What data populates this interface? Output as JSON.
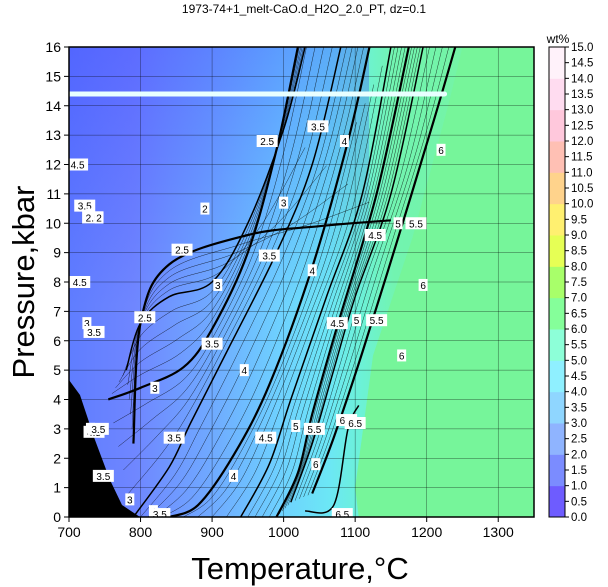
{
  "title": "1973-74+1_melt-CaO.d_H2O_2.0_PT, dz=0.1",
  "colorbar_title": "wt%",
  "chart_data": {
    "type": "heatmap",
    "title": "1973-74+1_melt-CaO.d_H2O_2.0_PT, dz=0.1",
    "xlabel": "Temperature,°C",
    "ylabel": "Pressure,kbar",
    "xlim": [
      700,
      1350
    ],
    "ylim": [
      0,
      16
    ],
    "x_ticks": [
      700,
      800,
      900,
      1000,
      1100,
      1200,
      1300
    ],
    "y_ticks": [
      0,
      1,
      2,
      3,
      4,
      5,
      6,
      7,
      8,
      9,
      10,
      11,
      12,
      13,
      14,
      15,
      16
    ],
    "grid": true,
    "colorbar": {
      "label": "wt%",
      "range": [
        0.0,
        15.0
      ],
      "ticks": [
        "0.0",
        "0.5",
        "1.0",
        "1.5",
        "2.0",
        "2.5",
        "3.0",
        "3.5",
        "4.0",
        "4.5",
        "5.0",
        "5.5",
        "6.0",
        "6.5",
        "7.0",
        "7.5",
        "8.0",
        "8.5",
        "9.0",
        "9.5",
        "10.0",
        "10.5",
        "11.0",
        "11.5",
        "12.0",
        "12.5",
        "13.0",
        "13.5",
        "14.0",
        "14.5",
        "15.0"
      ],
      "colors": [
        "#6e5cff",
        "#7b8cff",
        "#8fb4ff",
        "#8fd6ff",
        "#8ff0ff",
        "#8dffd8",
        "#85ff9a",
        "#a8ff6a",
        "#e6ff55",
        "#fff070",
        "#ffd38c",
        "#ffc0b4",
        "#ffc8dc",
        "#ffdcf0",
        "#fff2fa"
      ]
    },
    "subsolidus_region": {
      "t_min": 1105,
      "value": 7.8,
      "color": "#76f59a"
    },
    "highlight_line": {
      "p": 14.4,
      "t_range": [
        700,
        1225
      ],
      "color": "#e8ffff"
    },
    "contours": [
      {
        "level": 2.0,
        "points": [
          [
            790,
            2.5
          ],
          [
            800,
            6.6
          ],
          [
            840,
            8.6
          ],
          [
            950,
            9.6
          ],
          [
            1050,
            9.9
          ],
          [
            1150,
            10.1
          ]
        ]
      },
      {
        "level": 2.5,
        "points": [
          [
            780,
            5.0
          ],
          [
            800,
            6.6
          ],
          [
            840,
            7.5
          ],
          [
            900,
            8.0
          ],
          [
            950,
            10.0
          ],
          [
            1000,
            13.2
          ],
          [
            1030,
            16.0
          ]
        ]
      },
      {
        "level": 3.0,
        "points": [
          [
            755,
            4.0
          ],
          [
            800,
            4.4
          ],
          [
            860,
            5.1
          ],
          [
            900,
            6.4
          ],
          [
            950,
            9.0
          ],
          [
            990,
            12.5
          ],
          [
            1020,
            16.0
          ]
        ]
      },
      {
        "level": 3.5,
        "points": [
          [
            790,
            0.0
          ],
          [
            840,
            1.7
          ],
          [
            870,
            3.2
          ],
          [
            920,
            5.6
          ],
          [
            990,
            9.0
          ],
          [
            1040,
            12.0
          ],
          [
            1080,
            16.0
          ]
        ]
      },
      {
        "level": 4.0,
        "points": [
          [
            840,
            0.0
          ],
          [
            880,
            0.4
          ],
          [
            930,
            2.1
          ],
          [
            980,
            4.5
          ],
          [
            1040,
            8.5
          ],
          [
            1090,
            12.8
          ],
          [
            1120,
            16.0
          ]
        ]
      },
      {
        "level": 4.5,
        "points": [
          [
            940,
            0.0
          ],
          [
            980,
            1.8
          ],
          [
            1010,
            4.0
          ],
          [
            1060,
            7.5
          ],
          [
            1110,
            11.0
          ],
          [
            1150,
            16.0
          ]
        ]
      },
      {
        "level": 5.0,
        "points": [
          [
            990,
            0.0
          ],
          [
            1020,
            1.5
          ],
          [
            1040,
            3.5
          ],
          [
            1075,
            6.5
          ],
          [
            1130,
            11.0
          ],
          [
            1175,
            16.0
          ]
        ]
      },
      {
        "level": 5.5,
        "points": [
          [
            1010,
            0.5
          ],
          [
            1040,
            2.5
          ],
          [
            1070,
            5.0
          ],
          [
            1100,
            7.5
          ],
          [
            1150,
            11.0
          ],
          [
            1195,
            16.0
          ]
        ]
      },
      {
        "level": 6.0,
        "points": [
          [
            1040,
            0.8
          ],
          [
            1070,
            2.7
          ],
          [
            1110,
            5.6
          ],
          [
            1160,
            9.5
          ],
          [
            1210,
            13.5
          ],
          [
            1240,
            16.0
          ]
        ]
      },
      {
        "level": 6.5,
        "points": [
          [
            1030,
            0.2
          ],
          [
            1070,
            0.4
          ],
          [
            1090,
            3.0
          ],
          [
            1105,
            3.8
          ]
        ]
      }
    ],
    "contour_labels": [
      {
        "text": "2.5",
        "t": 977,
        "p": 12.8
      },
      {
        "text": "3.5",
        "t": 1048,
        "p": 13.3
      },
      {
        "text": "4",
        "t": 1085,
        "p": 12.8
      },
      {
        "text": "6",
        "t": 1220,
        "p": 12.5
      },
      {
        "text": "3",
        "t": 1000,
        "p": 10.7
      },
      {
        "text": "2",
        "t": 890,
        "p": 10.5
      },
      {
        "text": "4.5",
        "t": 1128,
        "p": 9.6
      },
      {
        "text": "5",
        "t": 1160,
        "p": 10.0
      },
      {
        "text": "5.5",
        "t": 1185,
        "p": 10.0
      },
      {
        "text": "3.5",
        "t": 980,
        "p": 8.9
      },
      {
        "text": "2.5",
        "t": 858,
        "p": 9.1
      },
      {
        "text": "4",
        "t": 1040,
        "p": 8.4
      },
      {
        "text": "3",
        "t": 908,
        "p": 7.9
      },
      {
        "text": "6",
        "t": 1195,
        "p": 7.9
      },
      {
        "text": "4.5",
        "t": 1075,
        "p": 6.6
      },
      {
        "text": "5",
        "t": 1102,
        "p": 6.7
      },
      {
        "text": "5.5",
        "t": 1130,
        "p": 6.7
      },
      {
        "text": "2.5",
        "t": 806,
        "p": 6.8
      },
      {
        "text": "3.5",
        "t": 900,
        "p": 5.9
      },
      {
        "text": "6",
        "t": 1165,
        "p": 5.5
      },
      {
        "text": "4",
        "t": 945,
        "p": 5.0
      },
      {
        "text": "3",
        "t": 820,
        "p": 4.4
      },
      {
        "text": "5",
        "t": 1017,
        "p": 3.1
      },
      {
        "text": "5.5",
        "t": 1043,
        "p": 3.0
      },
      {
        "text": "6.5",
        "t": 1088,
        "p": 3.3
      },
      {
        "text": "6.5",
        "t": 1100,
        "p": 3.2
      },
      {
        "text": "4.5",
        "t": 975,
        "p": 2.7
      },
      {
        "text": "3.5",
        "t": 847,
        "p": 2.7
      },
      {
        "text": "4",
        "t": 930,
        "p": 1.4
      },
      {
        "text": "6",
        "t": 1045,
        "p": 1.8
      },
      {
        "text": "6.5",
        "t": 1082,
        "p": 0.1
      },
      {
        "text": "3",
        "t": 785,
        "p": 0.6
      },
      {
        "text": "4",
        "t": 818,
        "p": 0.2
      },
      {
        "text": "3.5",
        "t": 827,
        "p": 0.1
      },
      {
        "text": "3.5",
        "t": 748,
        "p": 1.4
      },
      {
        "text": "4",
        "t": 730,
        "p": 3.0
      },
      {
        "text": "4.5",
        "t": 735,
        "p": 2.9
      },
      {
        "text": "3.5",
        "t": 741,
        "p": 3.0
      },
      {
        "text": "3",
        "t": 725,
        "p": 6.6
      },
      {
        "text": "3.5",
        "t": 735,
        "p": 6.3
      },
      {
        "text": "4.5",
        "t": 715,
        "p": 8.0
      },
      {
        "text": "4.5",
        "t": 712,
        "p": 12.0
      },
      {
        "text": "3.5",
        "t": 722,
        "p": 10.6
      },
      {
        "text": "3",
        "t": 730,
        "p": 10.3
      },
      {
        "text": "2.5",
        "t": 733,
        "p": 10.2
      },
      {
        "text": "2",
        "t": 742,
        "p": 10.2
      }
    ]
  }
}
